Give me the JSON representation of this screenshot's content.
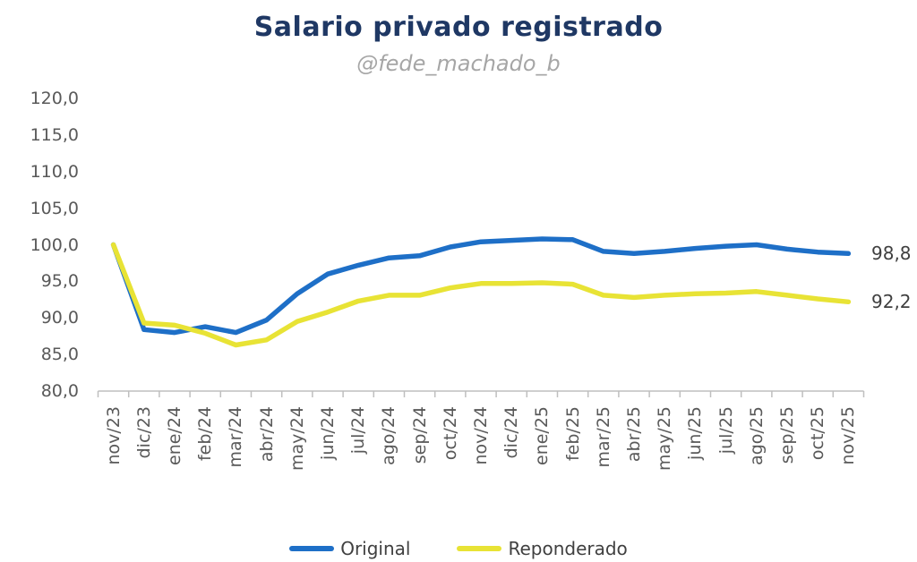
{
  "header": {
    "title": "Salario privado registrado",
    "subtitle": "@fede_machado_b"
  },
  "colors": {
    "title": "#1F3864",
    "subtitle": "#A6A6A6",
    "axis_text": "#595959",
    "axis_line": "#BFBFBF",
    "label_text": "#404040",
    "original": "#1E6FC7",
    "reponderado": "#E8E335",
    "background": "#FFFFFF"
  },
  "chart_data": {
    "type": "line",
    "title": "Salario privado registrado",
    "subtitle": "@fede_machado_b",
    "grid": false,
    "legend_position": "bottom",
    "categories": [
      "nov/23",
      "dic/23",
      "ene/24",
      "feb/24",
      "mar/24",
      "abr/24",
      "may/24",
      "jun/24",
      "jul/24",
      "ago/24",
      "sep/24",
      "oct/24",
      "nov/24",
      "dic/24",
      "ene/25",
      "feb/25",
      "mar/25",
      "abr/25",
      "may/25",
      "jun/25",
      "jul/25",
      "ago/25",
      "sep/25",
      "oct/25",
      "nov/25"
    ],
    "series": [
      {
        "name": "Original",
        "color_key": "original",
        "end_label": "98,8",
        "values": [
          100.0,
          88.4,
          88.0,
          88.8,
          88.0,
          89.7,
          93.3,
          96.0,
          97.2,
          98.2,
          98.5,
          99.7,
          100.4,
          100.6,
          100.8,
          100.7,
          99.1,
          98.8,
          99.1,
          99.5,
          99.8,
          100.0,
          99.4,
          99.0,
          98.8
        ]
      },
      {
        "name": "Reponderado",
        "color_key": "reponderado",
        "end_label": "92,2",
        "values": [
          100.0,
          89.3,
          89.0,
          87.9,
          86.3,
          87.0,
          89.5,
          90.8,
          92.3,
          93.1,
          93.1,
          94.1,
          94.7,
          94.7,
          94.8,
          94.6,
          93.1,
          92.8,
          93.1,
          93.3,
          93.4,
          93.6,
          93.1,
          92.6,
          92.2
        ]
      }
    ],
    "y_axis": {
      "min": 80,
      "max": 120,
      "step": 5,
      "ticks": [
        {
          "value": 120,
          "label": "120,0"
        },
        {
          "value": 115,
          "label": "115,0"
        },
        {
          "value": 110,
          "label": "110,0"
        },
        {
          "value": 105,
          "label": "105,0"
        },
        {
          "value": 100,
          "label": "100,0"
        },
        {
          "value": 95,
          "label": "95,0"
        },
        {
          "value": 90,
          "label": "90,0"
        },
        {
          "value": 85,
          "label": "85,0"
        },
        {
          "value": 80,
          "label": "80,0"
        }
      ]
    }
  }
}
